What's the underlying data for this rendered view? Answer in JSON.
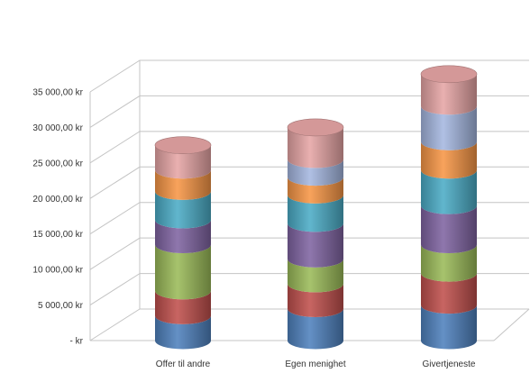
{
  "chart_data": {
    "type": "bar",
    "subtype": "stacked-3d-cylinder",
    "title": "",
    "xlabel": "",
    "ylabel": "",
    "ylim": [
      0,
      35000
    ],
    "y_ticks": [
      0,
      5000,
      10000,
      15000,
      20000,
      25000,
      30000,
      35000
    ],
    "y_tick_labels": [
      "-  kr",
      "5 000,00 kr",
      "10 000,00 kr",
      "15 000,00 kr",
      "20 000,00 kr",
      "25 000,00 kr",
      "30 000,00 kr",
      "35 000,00 kr"
    ],
    "grid": true,
    "legend": "none",
    "categories": [
      "Offer til andre",
      "Egen menighet",
      "Givertjeneste"
    ],
    "series": [
      {
        "color": "#4f81bd",
        "values": [
          3500,
          4500,
          5000
        ]
      },
      {
        "color": "#c0504d",
        "values": [
          3500,
          3500,
          4500
        ]
      },
      {
        "color": "#9bbb59",
        "values": [
          6500,
          3500,
          4000
        ]
      },
      {
        "color": "#8064a2",
        "values": [
          3500,
          5000,
          5500
        ]
      },
      {
        "color": "#4bacc6",
        "values": [
          4000,
          4000,
          5000
        ]
      },
      {
        "color": "#f79646",
        "values": [
          3000,
          2500,
          4000
        ]
      },
      {
        "color": "#a5b7e0",
        "values": [
          0,
          2500,
          5000
        ]
      },
      {
        "color": "#e6a5a5",
        "values": [
          3500,
          4500,
          4500
        ]
      }
    ]
  }
}
